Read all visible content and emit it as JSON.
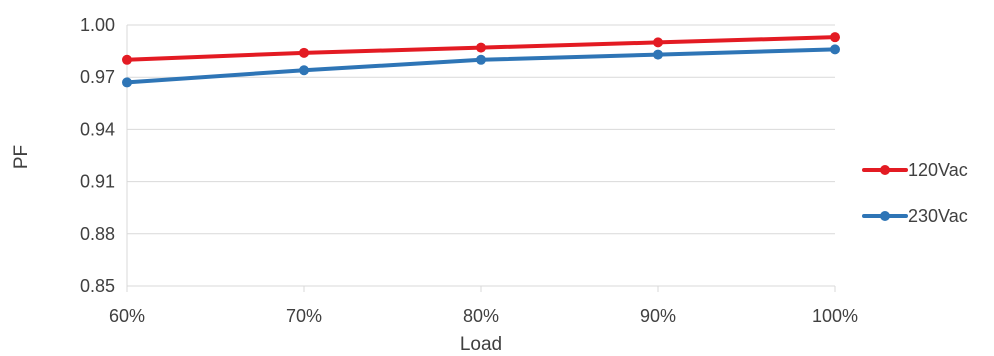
{
  "chart_data": {
    "type": "line",
    "categories": [
      "60%",
      "70%",
      "80%",
      "90%",
      "100%"
    ],
    "series": [
      {
        "name": "120Vac",
        "values": [
          0.98,
          0.984,
          0.987,
          0.99,
          0.993
        ],
        "color": "#e31b23"
      },
      {
        "name": "230Vac",
        "values": [
          0.967,
          0.974,
          0.98,
          0.983,
          0.986
        ],
        "color": "#2e75b6"
      }
    ],
    "title": "",
    "xlabel": "Load",
    "ylabel": "PF",
    "ylim": [
      0.85,
      1.0
    ],
    "yticks": [
      "0.85",
      "0.88",
      "0.91",
      "0.94",
      "0.97",
      "1.00"
    ],
    "grid": "horizontal",
    "legend_position": "right",
    "axis_color": "#d9d9d9",
    "text_color": "#404040"
  }
}
